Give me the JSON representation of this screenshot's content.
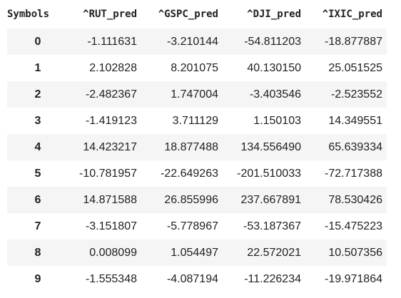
{
  "table": {
    "index_header": "Symbols",
    "columns": [
      "^RUT_pred",
      "^GSPC_pred",
      "^DJI_pred",
      "^IXIC_pred"
    ],
    "rows": [
      {
        "index": "0",
        "values": [
          "-1.111631",
          "-3.210144",
          "-54.811203",
          "-18.877887"
        ]
      },
      {
        "index": "1",
        "values": [
          "2.102828",
          "8.201075",
          "40.130150",
          "25.051525"
        ]
      },
      {
        "index": "2",
        "values": [
          "-2.482367",
          "1.747004",
          "-3.403546",
          "-2.523552"
        ]
      },
      {
        "index": "3",
        "values": [
          "-1.419123",
          "3.711129",
          "1.150103",
          "14.349551"
        ]
      },
      {
        "index": "4",
        "values": [
          "14.423217",
          "18.877488",
          "134.556490",
          "65.639334"
        ]
      },
      {
        "index": "5",
        "values": [
          "-10.781957",
          "-22.649263",
          "-201.510033",
          "-72.717388"
        ]
      },
      {
        "index": "6",
        "values": [
          "14.871588",
          "26.855996",
          "237.667891",
          "78.530426"
        ]
      },
      {
        "index": "7",
        "values": [
          "-3.151807",
          "-5.778967",
          "-53.187367",
          "-15.475223"
        ]
      },
      {
        "index": "8",
        "values": [
          "0.008099",
          "1.054497",
          "22.572021",
          "10.507356"
        ]
      },
      {
        "index": "9",
        "values": [
          "-1.555348",
          "-4.087194",
          "-11.226234",
          "-19.971864"
        ]
      }
    ],
    "colors": {
      "stripe": "#f5f5f5",
      "text": "#212121"
    }
  }
}
